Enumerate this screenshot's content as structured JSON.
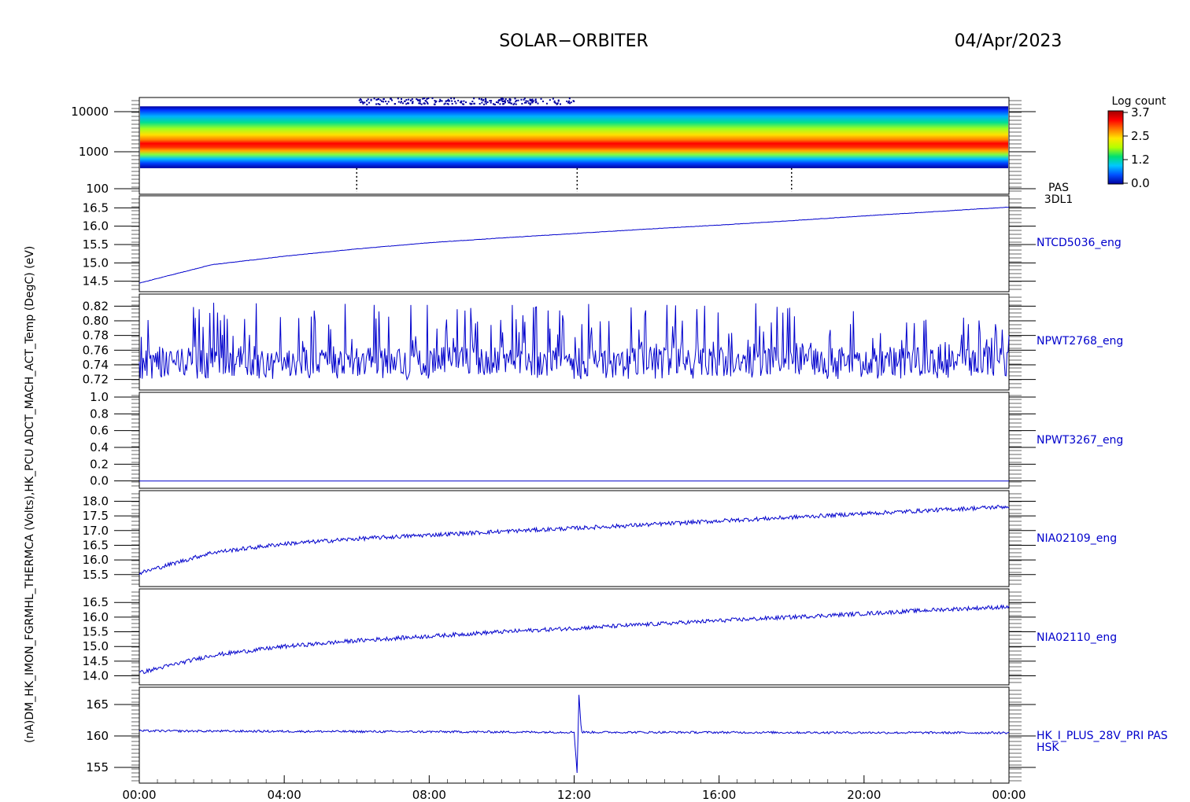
{
  "header": {
    "mission": "SOLAR−ORBITER",
    "date": "04/Apr/2023"
  },
  "colors": {
    "trace": "#0000cc",
    "axis": "#000000",
    "colorbar": [
      "#0000a0",
      "#0050ff",
      "#00c8ff",
      "#00e070",
      "#b4ff00",
      "#ffe600",
      "#ff7800",
      "#ff0000",
      "#a00000"
    ]
  },
  "y_axis_label_overlap": "(nA)DM_HK_IMON_FGRMHL_THERMCA (Volts),HK_PCU ADCT_MACH_ACT_Temp (DegC) (eV)",
  "x_axis": {
    "type": "time",
    "range": [
      "00:00",
      "24:00"
    ],
    "ticks": [
      "00:00",
      "04:00",
      "08:00",
      "12:00",
      "16:00",
      "20:00",
      "00:00"
    ]
  },
  "colorbar": {
    "title": "Log count",
    "ticks": [
      "3.7",
      "2.5",
      "1.2",
      "0.0"
    ],
    "range": [
      0.0,
      3.7
    ]
  },
  "chart_data": [
    {
      "type": "heatmap",
      "id": "pas-spectrogram",
      "series_label": [
        "PAS",
        "3DL1"
      ],
      "yscale": "log",
      "ylim": [
        100,
        20000
      ],
      "yticks": [
        "10000",
        "1000",
        "100"
      ],
      "energy_band_eV": [
        400,
        15000
      ],
      "peak_energy_eV": 1600,
      "data_gaps": [
        "06:00",
        "12:05",
        "18:00"
      ],
      "zlabel": "Log count",
      "zlim": [
        0.0,
        3.7
      ]
    },
    {
      "type": "line",
      "id": "ntcd5036",
      "series_label": "NTCD5036_eng",
      "ylim": [
        14.3,
        16.7
      ],
      "yticks": [
        "16.5",
        "16.0",
        "15.5",
        "15.0",
        "14.5"
      ],
      "x": [
        "00:00",
        "02:00",
        "04:00",
        "06:00",
        "08:00",
        "10:00",
        "12:00",
        "14:00",
        "16:00",
        "18:00",
        "20:00",
        "22:00",
        "24:00"
      ],
      "y": [
        14.45,
        14.95,
        15.18,
        15.38,
        15.55,
        15.68,
        15.8,
        15.92,
        16.03,
        16.15,
        16.28,
        16.4,
        16.52
      ]
    },
    {
      "type": "line",
      "id": "npwt2768",
      "series_label": "NPWT2768_eng",
      "ylim": [
        0.71,
        0.83
      ],
      "yticks": [
        "0.82",
        "0.80",
        "0.78",
        "0.76",
        "0.74",
        "0.72"
      ],
      "x": [
        "00:00",
        "24:00"
      ],
      "y_mean": 0.745,
      "y_range": [
        0.72,
        0.825
      ]
    },
    {
      "type": "line",
      "id": "npwt3267",
      "series_label": "NPWT3267_eng",
      "ylim": [
        -0.05,
        1.0
      ],
      "yticks": [
        "1.0",
        "0.8",
        "0.6",
        "0.4",
        "0.2",
        "0.0"
      ],
      "x": [
        "00:00",
        "24:00"
      ],
      "y": [
        0.0,
        0.0
      ]
    },
    {
      "type": "line",
      "id": "nia02109",
      "series_label": "NIA02109_eng",
      "ylim": [
        15.2,
        18.2
      ],
      "yticks": [
        "18.0",
        "17.5",
        "17.0",
        "16.5",
        "16.0",
        "15.5"
      ],
      "x": [
        "00:00",
        "02:00",
        "04:00",
        "06:00",
        "08:00",
        "10:00",
        "12:00",
        "14:00",
        "16:00",
        "18:00",
        "20:00",
        "22:00",
        "24:00"
      ],
      "y": [
        15.55,
        16.25,
        16.55,
        16.72,
        16.85,
        16.97,
        17.08,
        17.2,
        17.33,
        17.45,
        17.58,
        17.7,
        17.82
      ]
    },
    {
      "type": "line",
      "id": "nia02110",
      "series_label": "NIA02110_eng",
      "ylim": [
        13.8,
        16.8
      ],
      "yticks": [
        "16.5",
        "16.0",
        "15.5",
        "15.0",
        "14.5",
        "14.0"
      ],
      "x": [
        "00:00",
        "02:00",
        "04:00",
        "06:00",
        "08:00",
        "10:00",
        "12:00",
        "14:00",
        "16:00",
        "18:00",
        "20:00",
        "22:00",
        "24:00"
      ],
      "y": [
        14.1,
        14.7,
        15.0,
        15.2,
        15.35,
        15.5,
        15.62,
        15.75,
        15.88,
        16.0,
        16.12,
        16.25,
        16.35
      ]
    },
    {
      "type": "line",
      "id": "hk-i-plus-28v",
      "series_label": [
        "HK_I_PLUS_28V_PRI PAS",
        "HSK"
      ],
      "ylim": [
        153,
        167
      ],
      "yticks": [
        "165",
        "160",
        "155"
      ],
      "x": [
        "00:00",
        "12:00",
        "12:05",
        "12:08",
        "12:12",
        "24:00"
      ],
      "y": [
        160.8,
        160.6,
        154.0,
        166.5,
        160.6,
        160.5
      ]
    }
  ]
}
